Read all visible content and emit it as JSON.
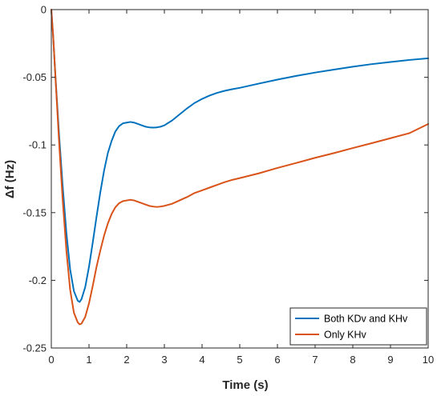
{
  "chart_data": {
    "type": "line",
    "xlabel": "Time (s)",
    "ylabel": "Δf (Hz)",
    "xlim": [
      0,
      10
    ],
    "ylim": [
      -0.25,
      0
    ],
    "xticks": [
      0,
      1,
      2,
      3,
      4,
      5,
      6,
      7,
      8,
      9,
      10
    ],
    "xtick_labels": [
      "0",
      "1",
      "2",
      "3",
      "4",
      "5",
      "6",
      "7",
      "8",
      "9",
      "10"
    ],
    "yticks": [
      0,
      -0.05,
      -0.1,
      -0.15,
      -0.2,
      -0.25
    ],
    "ytick_labels": [
      "0",
      "-0.05",
      "-0.1",
      "-0.15",
      "-0.2",
      "-0.25"
    ],
    "grid": false,
    "legend_position": "bottom-right",
    "series": [
      {
        "name": "Both KDv and KHv",
        "color": "#0072BD",
        "x": [
          0,
          0.05,
          0.1,
          0.2,
          0.3,
          0.4,
          0.5,
          0.6,
          0.7,
          0.75,
          0.8,
          0.9,
          1.0,
          1.1,
          1.2,
          1.3,
          1.4,
          1.5,
          1.6,
          1.7,
          1.8,
          1.9,
          2.0,
          2.1,
          2.2,
          2.3,
          2.4,
          2.5,
          2.6,
          2.7,
          2.8,
          2.9,
          3.0,
          3.2,
          3.4,
          3.6,
          3.8,
          4.0,
          4.2,
          4.4,
          4.6,
          4.8,
          5.0,
          5.5,
          6.0,
          6.5,
          7.0,
          7.5,
          8.0,
          8.5,
          9.0,
          9.5,
          10.0
        ],
        "y": [
          0,
          -0.02,
          -0.045,
          -0.09,
          -0.13,
          -0.165,
          -0.192,
          -0.208,
          -0.215,
          -0.216,
          -0.214,
          -0.205,
          -0.19,
          -0.172,
          -0.153,
          -0.135,
          -0.119,
          -0.106,
          -0.097,
          -0.09,
          -0.086,
          -0.084,
          -0.0835,
          -0.083,
          -0.0835,
          -0.0845,
          -0.0855,
          -0.0865,
          -0.087,
          -0.0872,
          -0.087,
          -0.0865,
          -0.0855,
          -0.082,
          -0.0775,
          -0.073,
          -0.069,
          -0.066,
          -0.0635,
          -0.0615,
          -0.06,
          -0.0588,
          -0.0578,
          -0.0547,
          -0.0517,
          -0.049,
          -0.0465,
          -0.0443,
          -0.0422,
          -0.0403,
          -0.0387,
          -0.0372,
          -0.036
        ]
      },
      {
        "name": "Only KHv",
        "color": "#D95319",
        "x": [
          0,
          0.05,
          0.1,
          0.2,
          0.3,
          0.4,
          0.5,
          0.6,
          0.7,
          0.75,
          0.8,
          0.9,
          1.0,
          1.1,
          1.2,
          1.3,
          1.4,
          1.5,
          1.6,
          1.7,
          1.8,
          1.9,
          2.0,
          2.1,
          2.2,
          2.3,
          2.4,
          2.5,
          2.6,
          2.7,
          2.8,
          2.9,
          3.0,
          3.2,
          3.4,
          3.6,
          3.8,
          4.0,
          4.2,
          4.4,
          4.6,
          4.8,
          5.0,
          5.5,
          6.0,
          6.5,
          7.0,
          7.5,
          8.0,
          8.5,
          9.0,
          9.5,
          10.0
        ],
        "y": [
          0,
          -0.02,
          -0.045,
          -0.095,
          -0.14,
          -0.178,
          -0.207,
          -0.224,
          -0.231,
          -0.2325,
          -0.232,
          -0.227,
          -0.217,
          -0.204,
          -0.19,
          -0.178,
          -0.167,
          -0.158,
          -0.151,
          -0.146,
          -0.143,
          -0.1415,
          -0.141,
          -0.1405,
          -0.141,
          -0.142,
          -0.143,
          -0.144,
          -0.145,
          -0.1455,
          -0.1458,
          -0.1455,
          -0.145,
          -0.1435,
          -0.141,
          -0.1385,
          -0.1355,
          -0.1335,
          -0.1315,
          -0.1295,
          -0.1275,
          -0.1258,
          -0.1245,
          -0.121,
          -0.117,
          -0.1133,
          -0.1095,
          -0.106,
          -0.1023,
          -0.0987,
          -0.095,
          -0.0913,
          -0.0845
        ]
      }
    ]
  }
}
